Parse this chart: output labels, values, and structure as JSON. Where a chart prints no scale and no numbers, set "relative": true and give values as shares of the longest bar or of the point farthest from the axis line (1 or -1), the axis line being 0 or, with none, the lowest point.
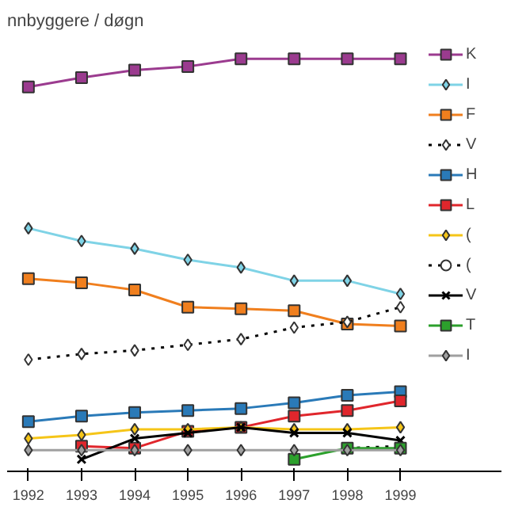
{
  "chart_data": {
    "type": "line",
    "title": "nnbyggere / døgn",
    "relative": true,
    "categories": [
      "1992",
      "1993",
      "1994",
      "1995",
      "1996",
      "1997",
      "1998",
      "1999"
    ],
    "legend": "right",
    "grid": false,
    "series": [
      {
        "name": "K",
        "color": "#9b3b8f",
        "marker": "square",
        "line_style": "solid",
        "values": [
          0.93,
          0.953,
          0.972,
          0.981,
          1,
          1,
          1,
          1
        ]
      },
      {
        "name": "I",
        "color": "#7fd3e6",
        "marker": "diamond",
        "line_style": "solid",
        "values": [
          0.577,
          0.545,
          0.526,
          0.498,
          0.479,
          0.446,
          0.446,
          0.413
        ]
      },
      {
        "name": "F",
        "color": "#f07f1e",
        "marker": "square",
        "line_style": "solid",
        "values": [
          0.451,
          0.441,
          0.423,
          0.38,
          0.376,
          0.371,
          0.338,
          0.333
        ]
      },
      {
        "name": "V",
        "color": "#000000",
        "marker": "diamond",
        "line_style": "dotted",
        "values": [
          0.249,
          0.263,
          0.272,
          0.286,
          0.3,
          0.329,
          0.343,
          0.38
        ]
      },
      {
        "name": "H",
        "color": "#2a7ab8",
        "marker": "square",
        "line_style": "solid",
        "values": [
          0.094,
          0.108,
          0.117,
          0.122,
          0.127,
          0.141,
          0.16,
          0.169
        ]
      },
      {
        "name": "L",
        "color": "#e0262c",
        "marker": "square",
        "line_style": "solid",
        "values": [
          null,
          0.033,
          0.028,
          0.07,
          0.08,
          0.108,
          0.122,
          0.146
        ]
      },
      {
        "name": "(",
        "color": "#f5c518",
        "marker": "diamond",
        "line_style": "solid",
        "values": [
          0.052,
          0.061,
          0.075,
          0.075,
          0.08,
          0.075,
          0.075,
          0.08
        ]
      },
      {
        "name": "(",
        "color": "#000000",
        "marker": "circle",
        "line_style": "dotted",
        "values": [
          null,
          null,
          null,
          null,
          null,
          null,
          0.028,
          0.033
        ]
      },
      {
        "name": "V",
        "color": "#000000",
        "marker": "cross",
        "line_style": "solid",
        "values": [
          null,
          0,
          0.052,
          0.066,
          0.08,
          0.066,
          0.066,
          0.047
        ]
      },
      {
        "name": "T",
        "color": "#2ca02c",
        "marker": "square",
        "line_style": "solid",
        "values": [
          null,
          null,
          null,
          null,
          null,
          0,
          0.028,
          0.028
        ]
      },
      {
        "name": "I",
        "color": "#a0a0a0",
        "marker": "diamond",
        "line_style": "solid",
        "values": [
          0.023,
          0.023,
          0.023,
          0.023,
          0.023,
          0.023,
          0.023,
          0.023
        ]
      }
    ]
  }
}
